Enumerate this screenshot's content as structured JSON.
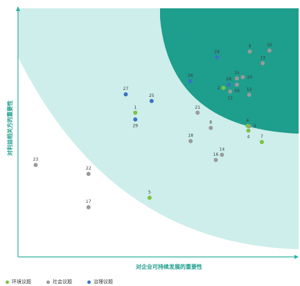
{
  "chart_data": {
    "type": "scatter",
    "xlabel": "对企业可持续发展的重要性",
    "ylabel": "对利益相关方的重要性",
    "xlim": [
      0,
      100
    ],
    "ylim": [
      0,
      100
    ],
    "grid": false,
    "legend_position": "bottom-left",
    "categories": [
      {
        "key": "env",
        "name": "环境议题",
        "color": "#7cc243"
      },
      {
        "key": "soc",
        "name": "社会议题",
        "color": "#9a9a9a"
      },
      {
        "key": "gov",
        "name": "治理议题",
        "color": "#3a73c4"
      }
    ],
    "zones": {
      "outer_color": "#cdeeea",
      "inner_color": "#1e9e8c",
      "axis_color": "#2fb09c"
    },
    "points": [
      {
        "id": "1",
        "x": 41.8,
        "y": 58.0,
        "category": "env"
      },
      {
        "id": "2",
        "x": 73.2,
        "y": 68.0,
        "category": "env"
      },
      {
        "id": "3",
        "x": 82.4,
        "y": 52.6,
        "category": "soc"
      },
      {
        "id": "4",
        "x": 82.1,
        "y": 50.8,
        "category": "env"
      },
      {
        "id": "5",
        "x": 46.9,
        "y": 23.8,
        "category": "env"
      },
      {
        "id": "6",
        "x": 81.8,
        "y": 52.7,
        "category": "env"
      },
      {
        "id": "7",
        "x": 86.9,
        "y": 46.2,
        "category": "env"
      },
      {
        "id": "8",
        "x": 68.7,
        "y": 51.9,
        "category": "soc"
      },
      {
        "id": "9",
        "x": 82.6,
        "y": 82.6,
        "category": "soc"
      },
      {
        "id": "10",
        "x": 89.6,
        "y": 83.0,
        "category": "soc"
      },
      {
        "id": "11",
        "x": 75.6,
        "y": 66.5,
        "category": "soc"
      },
      {
        "id": "12",
        "x": 82.4,
        "y": 65.2,
        "category": "soc"
      },
      {
        "id": "13",
        "x": 87.2,
        "y": 77.9,
        "category": "soc"
      },
      {
        "id": "14",
        "x": 72.7,
        "y": 41.1,
        "category": "soc"
      },
      {
        "id": "15",
        "x": 78.0,
        "y": 71.8,
        "category": "soc"
      },
      {
        "id": "16",
        "x": 70.5,
        "y": 39.0,
        "category": "soc"
      },
      {
        "id": "17",
        "x": 25.1,
        "y": 20.0,
        "category": "soc"
      },
      {
        "id": "18",
        "x": 61.5,
        "y": 46.6,
        "category": "soc"
      },
      {
        "id": "19",
        "x": 78.0,
        "y": 69.3,
        "category": "soc"
      },
      {
        "id": "20",
        "x": 80.1,
        "y": 72.3,
        "category": "soc"
      },
      {
        "id": "21",
        "x": 64.0,
        "y": 58.0,
        "category": "soc"
      },
      {
        "id": "22",
        "x": 25.1,
        "y": 33.4,
        "category": "soc"
      },
      {
        "id": "23",
        "x": 6.3,
        "y": 37.0,
        "category": "soc"
      },
      {
        "id": "24",
        "x": 70.9,
        "y": 80.3,
        "category": "gov"
      },
      {
        "id": "25",
        "x": 47.6,
        "y": 62.7,
        "category": "gov"
      },
      {
        "id": "26",
        "x": 61.4,
        "y": 70.7,
        "category": "gov"
      },
      {
        "id": "27",
        "x": 38.4,
        "y": 65.4,
        "category": "gov"
      },
      {
        "id": "28",
        "x": 75.1,
        "y": 69.3,
        "category": "gov"
      },
      {
        "id": "29",
        "x": 41.8,
        "y": 55.3,
        "category": "gov"
      }
    ]
  }
}
